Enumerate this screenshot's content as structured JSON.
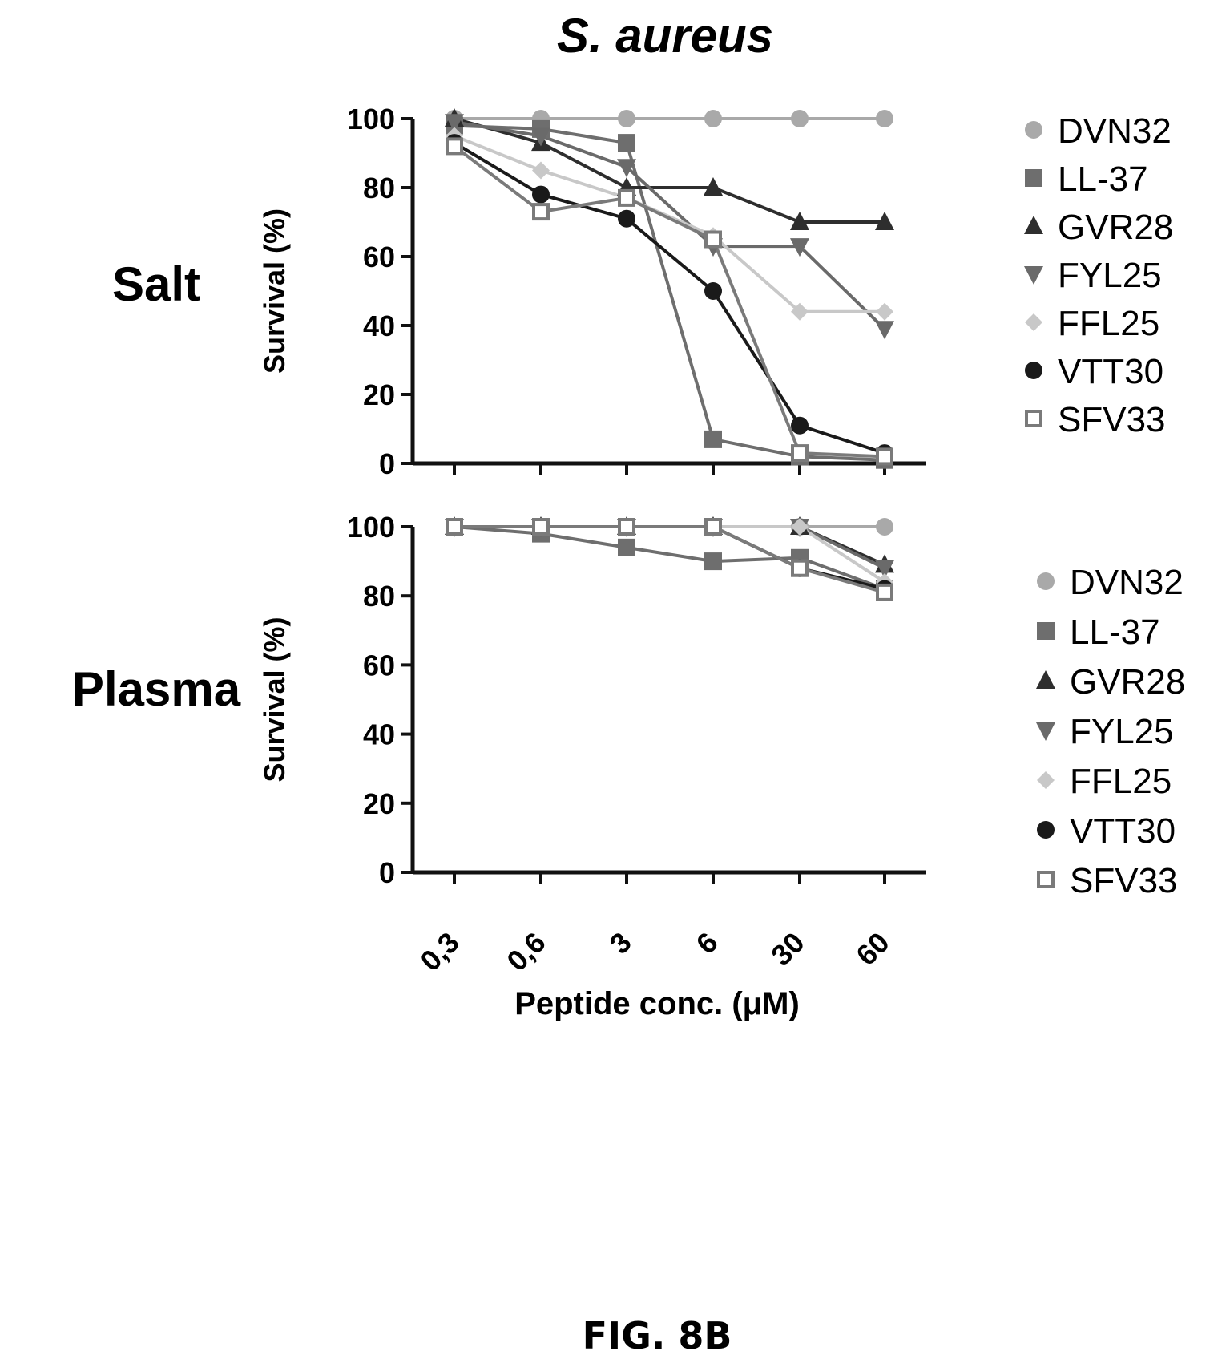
{
  "figure": {
    "title": "S. aureus",
    "caption": "FIG. 8B",
    "xlabel": "Peptide conc. (μM)"
  },
  "chart_data": [
    {
      "type": "line",
      "row_label": "Salt",
      "ylabel": "Survival (%)",
      "categories": [
        "0,3",
        "0,6",
        "3",
        "6",
        "30",
        "60"
      ],
      "ylim": [
        0,
        100
      ],
      "yticks": [
        "0",
        "20",
        "40",
        "60",
        "80",
        "100"
      ],
      "series": [
        {
          "name": "DVN32",
          "marker": "circle",
          "color": "#a9a9a9",
          "values": [
            100,
            100,
            100,
            100,
            100,
            100
          ]
        },
        {
          "name": "LL-37",
          "marker": "square",
          "color": "#6e6e6e",
          "values": [
            98,
            97,
            93,
            7,
            2,
            1
          ]
        },
        {
          "name": "GVR28",
          "marker": "triangle-up",
          "color": "#2e2e2e",
          "values": [
            100,
            93,
            80,
            80,
            70,
            70
          ]
        },
        {
          "name": "FYL25",
          "marker": "triangle-down",
          "color": "#6a6a6a",
          "values": [
            99,
            95,
            86,
            63,
            63,
            39
          ]
        },
        {
          "name": "FFL25",
          "marker": "diamond",
          "color": "#c8c8c8",
          "values": [
            95,
            85,
            77,
            66,
            44,
            44
          ]
        },
        {
          "name": "VTT30",
          "marker": "circle",
          "color": "#1a1a1a",
          "values": [
            93,
            78,
            71,
            50,
            11,
            3
          ]
        },
        {
          "name": "SFV33",
          "marker": "square-open",
          "color": "#7a7a7a",
          "values": [
            92,
            73,
            77,
            65,
            3,
            2
          ]
        }
      ]
    },
    {
      "type": "line",
      "row_label": "Plasma",
      "ylabel": "Survival (%)",
      "categories": [
        "0,3",
        "0,6",
        "3",
        "6",
        "30",
        "60"
      ],
      "ylim": [
        0,
        100
      ],
      "yticks": [
        "0",
        "20",
        "40",
        "60",
        "80",
        "100"
      ],
      "series": [
        {
          "name": "DVN32",
          "marker": "circle",
          "color": "#a9a9a9",
          "values": [
            100,
            100,
            100,
            100,
            100,
            100
          ]
        },
        {
          "name": "LL-37",
          "marker": "square",
          "color": "#6e6e6e",
          "values": [
            100,
            98,
            94,
            90,
            91,
            82
          ]
        },
        {
          "name": "GVR28",
          "marker": "triangle-up",
          "color": "#2e2e2e",
          "values": [
            100,
            100,
            100,
            100,
            100,
            89
          ]
        },
        {
          "name": "FYL25",
          "marker": "triangle-down",
          "color": "#6a6a6a",
          "values": [
            100,
            100,
            100,
            100,
            100,
            88
          ]
        },
        {
          "name": "FFL25",
          "marker": "diamond",
          "color": "#c8c8c8",
          "values": [
            100,
            100,
            100,
            100,
            100,
            84
          ]
        },
        {
          "name": "VTT30",
          "marker": "circle",
          "color": "#1a1a1a",
          "values": [
            100,
            100,
            100,
            100,
            88,
            82
          ]
        },
        {
          "name": "SFV33",
          "marker": "square-open",
          "color": "#7a7a7a",
          "values": [
            100,
            100,
            100,
            100,
            88,
            81
          ]
        }
      ]
    }
  ]
}
